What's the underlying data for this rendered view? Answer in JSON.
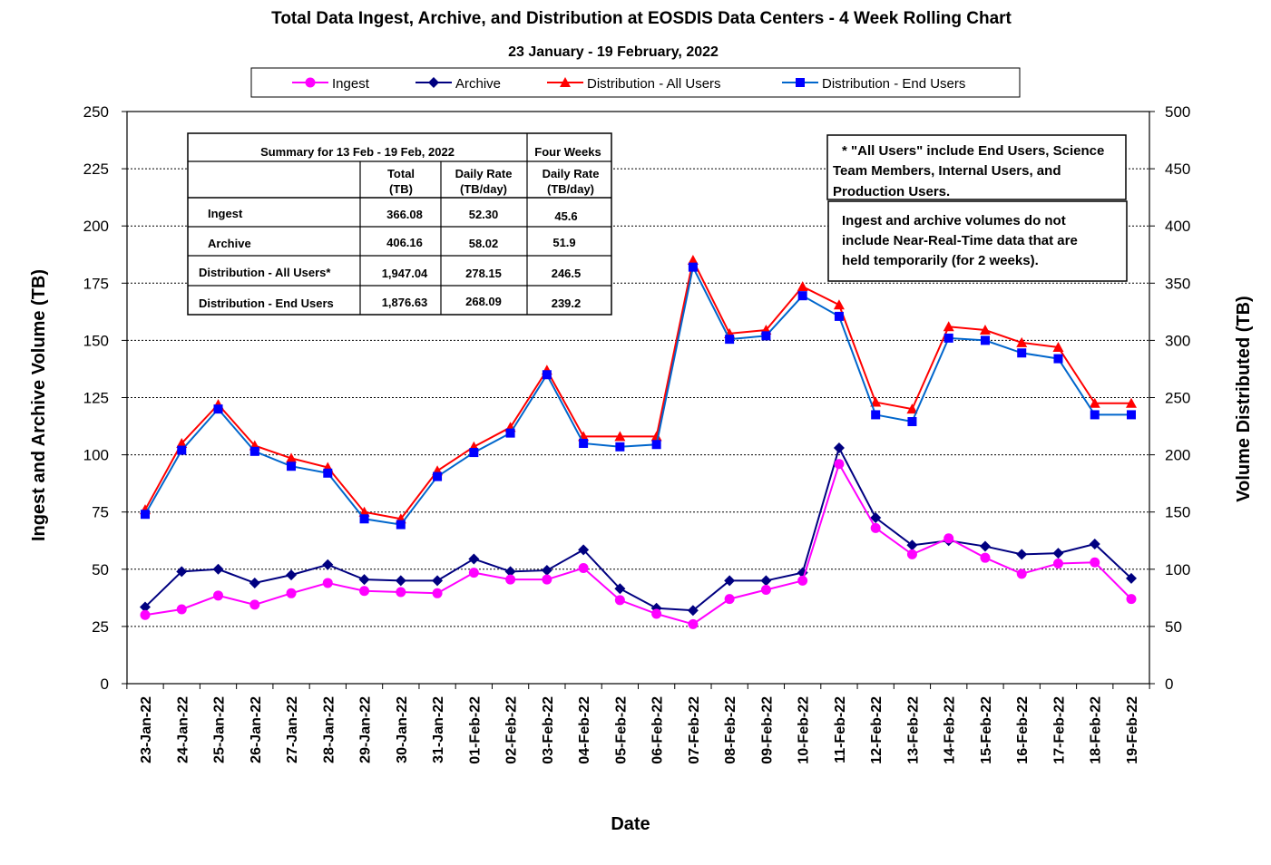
{
  "chart_data": {
    "type": "line",
    "title": "Total Data Ingest, Archive, and  Distribution at EOSDIS Data Centers - 4 Week Rolling Chart",
    "subtitle": "23  January   -  19  February,  2022",
    "xlabel": "Date",
    "ylabel": "Ingest and Archive Volume (TB)",
    "y2label": "Volume Distributed (TB)",
    "ylim": [
      0,
      250
    ],
    "y2lim": [
      0,
      500
    ],
    "yticks": [
      "0",
      "25",
      "50",
      "75",
      "100",
      "125",
      "150",
      "175",
      "200",
      "225",
      "250"
    ],
    "y2ticks": [
      "0",
      "50",
      "100",
      "150",
      "200",
      "250",
      "300",
      "350",
      "400",
      "450",
      "500"
    ],
    "grid": true,
    "legend_position": "top",
    "categories": [
      "23-Jan-22",
      "24-Jan-22",
      "25-Jan-22",
      "26-Jan-22",
      "27-Jan-22",
      "28-Jan-22",
      "29-Jan-22",
      "30-Jan-22",
      "31-Jan-22",
      "01-Feb-22",
      "02-Feb-22",
      "03-Feb-22",
      "04-Feb-22",
      "05-Feb-22",
      "06-Feb-22",
      "07-Feb-22",
      "08-Feb-22",
      "09-Feb-22",
      "10-Feb-22",
      "11-Feb-22",
      "12-Feb-22",
      "13-Feb-22",
      "14-Feb-22",
      "15-Feb-22",
      "16-Feb-22",
      "17-Feb-22",
      "18-Feb-22",
      "19-Feb-22"
    ],
    "series": [
      {
        "name": "Ingest",
        "axis": "left",
        "color": "#ff00ff",
        "marker": "circle",
        "values": [
          30,
          32.5,
          38.5,
          34.5,
          39.5,
          44,
          40.5,
          40,
          39.5,
          48.5,
          45.5,
          45.5,
          50.5,
          36.5,
          30.5,
          26,
          37,
          41,
          45,
          96,
          68,
          56.5,
          63.5,
          55,
          48,
          52.5,
          53,
          37
        ]
      },
      {
        "name": "Archive",
        "axis": "left",
        "color": "#000080",
        "marker": "diamond",
        "values": [
          33.5,
          49,
          50,
          44,
          47.5,
          52,
          45.5,
          45,
          45,
          54.5,
          49,
          49.5,
          58.5,
          41.5,
          33,
          32,
          45,
          45,
          48.5,
          103,
          72.5,
          60.5,
          62.5,
          60,
          56.5,
          57,
          61,
          46
        ]
      },
      {
        "name": "Distribution - All Users",
        "axis": "right",
        "color": "#ff0000",
        "marker": "triangle",
        "values": [
          152,
          210,
          244,
          208,
          197,
          189,
          150,
          144,
          186,
          207,
          224,
          274,
          216,
          216,
          216,
          370,
          306,
          309,
          347,
          331,
          246,
          240,
          312,
          309,
          298,
          294,
          245,
          245
        ]
      },
      {
        "name": "Distribution - End Users",
        "axis": "right",
        "color": "#0066cc",
        "marker": "square",
        "values": [
          148,
          204,
          240,
          203,
          190,
          184,
          144,
          139,
          181,
          202,
          219,
          270,
          210,
          207,
          209,
          364,
          301,
          304,
          339,
          321,
          235,
          229,
          302,
          300,
          289,
          284,
          235,
          235
        ]
      }
    ]
  },
  "summary_table": {
    "title": "Summary  for  13  Feb   -  19  Feb,  2022",
    "four_weeks_label": "Four Weeks",
    "col_total_line1": "Total",
    "col_total_line2": "(TB)",
    "col_daily_line1": "Daily Rate",
    "col_daily_line2": "(TB/day)",
    "col_four_line1": "Daily Rate",
    "col_four_line2": "(TB/day)",
    "rows": [
      {
        "label": "Ingest",
        "total": "366.08",
        "daily": "52.30",
        "four": "45.6"
      },
      {
        "label": "Archive",
        "total": "406.16",
        "daily": "58.02",
        "four": "51.9"
      },
      {
        "label": "Distribution - All Users*",
        "total": "1,947.04",
        "daily": "278.15",
        "four": "246.5"
      },
      {
        "label": "Distribution - End Users",
        "total": "1,876.63",
        "daily": "268.09",
        "four": "239.2"
      }
    ]
  },
  "notes": {
    "note1": [
      "* \"All Users\" include End Users, Science",
      "Team Members,  Internal Users, and",
      "Production Users."
    ],
    "note2": [
      "Ingest and archive volumes do not",
      "include Near-Real-Time data that are",
      "held temporarily (for 2 weeks)."
    ]
  }
}
